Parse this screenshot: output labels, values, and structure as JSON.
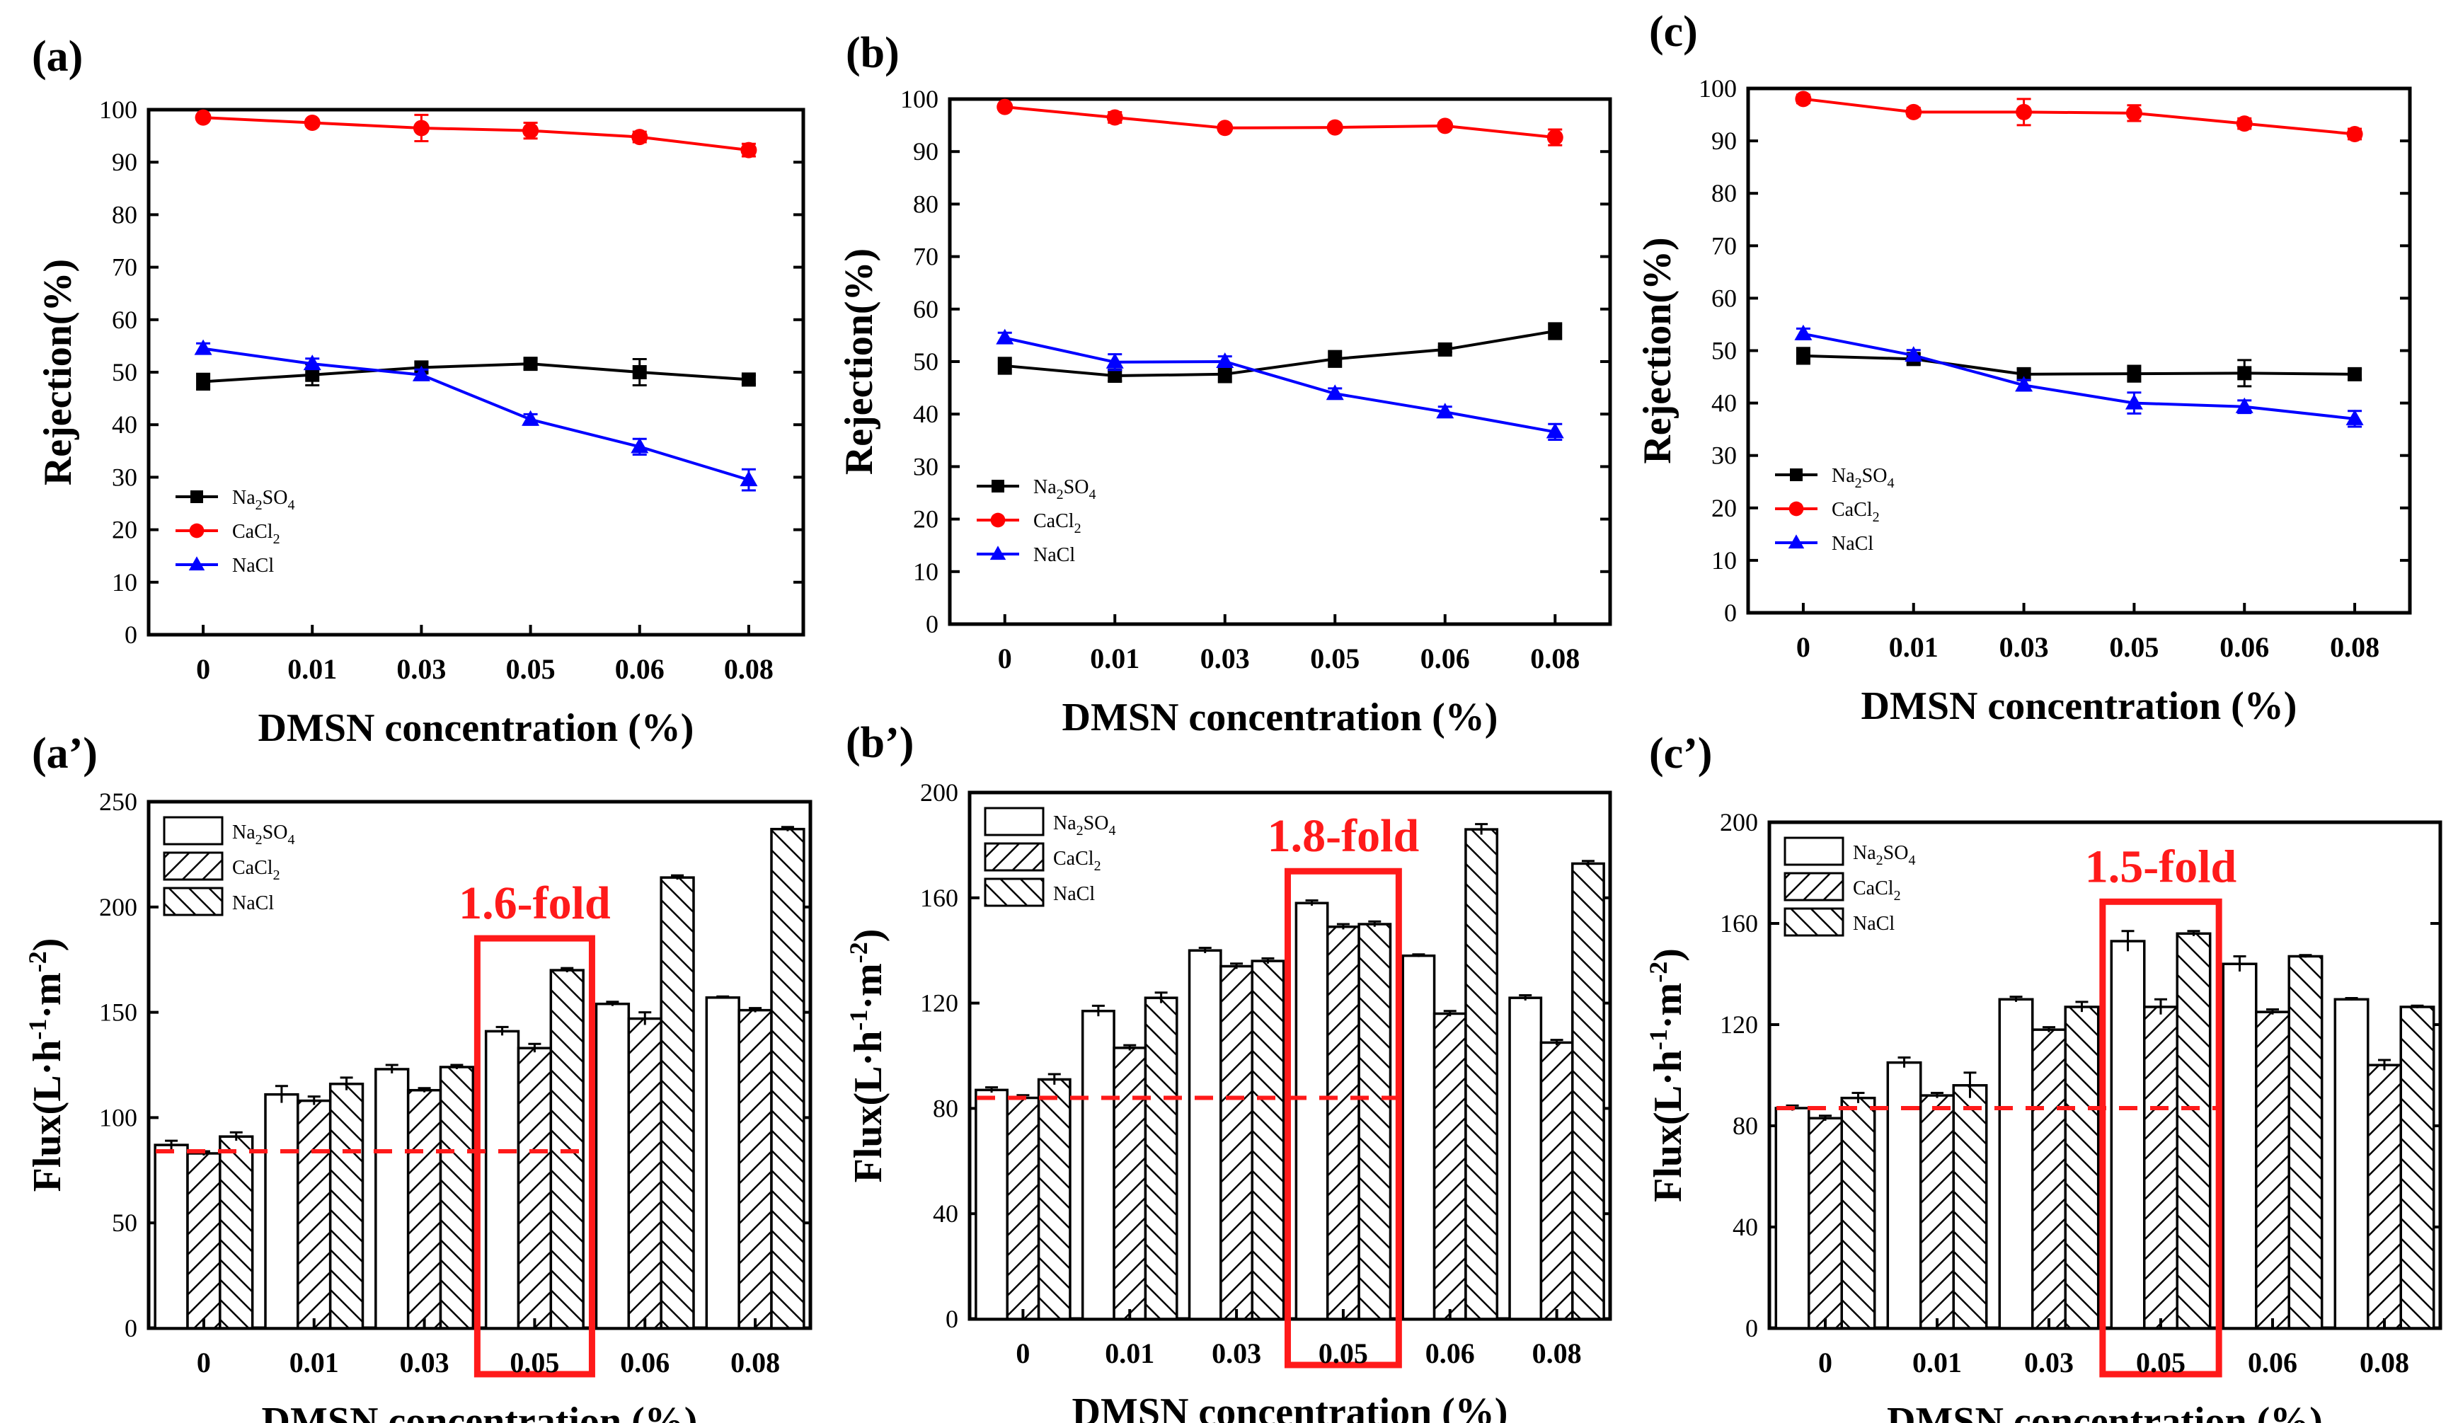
{
  "figure": {
    "xlabel": "DMSN concentration (%)",
    "categories": [
      "0",
      "0.01",
      "0.03",
      "0.05",
      "0.06",
      "0.08"
    ],
    "rejection_ylabel": "Rejection(%)",
    "flux_ylabel": {
      "pre": "Flux(L·h",
      "sup1": "-1",
      "mid": "·m",
      "sup2": "-2",
      "post": ")"
    },
    "legend": [
      {
        "base": "Na",
        "sub1": "2",
        "mid": "SO",
        "sub2": "4",
        "key": "Na2SO4"
      },
      {
        "base": "CaCl",
        "sub1": "2",
        "mid": "",
        "sub2": "",
        "key": "CaCl2"
      },
      {
        "base": "NaCl",
        "sub1": "",
        "mid": "",
        "sub2": "",
        "key": "NaCl"
      }
    ],
    "colors": {
      "Na2SO4": "#000000",
      "CaCl2": "#ff0000",
      "NaCl": "#0000ff",
      "highlight": "#ff1a1a"
    }
  },
  "chart_data": [
    {
      "panel": "(a)",
      "type": "line",
      "ylim": [
        0,
        100
      ],
      "yticks": [
        0,
        10,
        20,
        30,
        40,
        50,
        60,
        70,
        80,
        90,
        100
      ],
      "series": [
        {
          "name": "Na2SO4",
          "values": [
            48.2,
            49.5,
            50.9,
            51.6,
            50.0,
            48.6
          ],
          "errors": [
            1.5,
            2.0,
            1.0,
            1.0,
            2.5,
            0.8
          ]
        },
        {
          "name": "CaCl2",
          "values": [
            98.5,
            97.5,
            96.5,
            96.0,
            94.8,
            92.3
          ],
          "errors": [
            0.5,
            0.6,
            2.5,
            1.5,
            1.0,
            1.2
          ]
        },
        {
          "name": "NaCl",
          "values": [
            54.5,
            51.6,
            49.5,
            41.0,
            35.8,
            29.5
          ],
          "errors": [
            1.0,
            1.0,
            1.0,
            1.0,
            1.5,
            2.0
          ]
        }
      ]
    },
    {
      "panel": "(b)",
      "type": "line",
      "ylim": [
        0,
        100
      ],
      "yticks": [
        0,
        10,
        20,
        30,
        40,
        50,
        60,
        70,
        80,
        90,
        100
      ],
      "series": [
        {
          "name": "Na2SO4",
          "values": [
            49.2,
            47.3,
            47.6,
            50.5,
            52.3,
            55.8
          ],
          "errors": [
            1.5,
            1.0,
            1.5,
            1.5,
            0.5,
            1.5
          ]
        },
        {
          "name": "CaCl2",
          "values": [
            98.5,
            96.5,
            94.5,
            94.6,
            94.9,
            92.7
          ],
          "errors": [
            0.5,
            1.0,
            0.5,
            0.5,
            0.5,
            1.5
          ]
        },
        {
          "name": "NaCl",
          "values": [
            54.5,
            49.9,
            50.0,
            43.9,
            40.4,
            36.6
          ],
          "errors": [
            1.0,
            1.5,
            1.0,
            1.0,
            1.0,
            1.5
          ]
        }
      ]
    },
    {
      "panel": "(c)",
      "type": "line",
      "ylim": [
        0,
        100
      ],
      "yticks": [
        0,
        10,
        20,
        30,
        40,
        50,
        60,
        70,
        80,
        90,
        100
      ],
      "series": [
        {
          "name": "Na2SO4",
          "values": [
            49.0,
            48.4,
            45.5,
            45.6,
            45.7,
            45.5
          ],
          "errors": [
            1.5,
            1.0,
            1.0,
            1.5,
            2.5,
            1.0
          ]
        },
        {
          "name": "CaCl2",
          "values": [
            98.0,
            95.5,
            95.5,
            95.3,
            93.3,
            91.3
          ],
          "errors": [
            0.8,
            0.8,
            2.5,
            1.5,
            1.0,
            1.0
          ]
        },
        {
          "name": "NaCl",
          "values": [
            53.2,
            49.1,
            43.4,
            40.0,
            39.3,
            37.0
          ],
          "errors": [
            1.0,
            1.0,
            1.0,
            2.0,
            1.2,
            1.5
          ]
        }
      ]
    },
    {
      "panel": "(a’)",
      "type": "bar",
      "ylim": [
        0,
        250
      ],
      "yticks": [
        0,
        50,
        100,
        150,
        200,
        250
      ],
      "annotation": {
        "text": "1.6-fold",
        "category": "0.05",
        "baseline": 84
      },
      "series": [
        {
          "name": "Na2SO4",
          "values": [
            87,
            111,
            123,
            141,
            154,
            157
          ],
          "errors": [
            2,
            4,
            2,
            2,
            1,
            0.5
          ]
        },
        {
          "name": "CaCl2",
          "values": [
            83,
            108,
            113,
            133,
            147,
            151
          ],
          "errors": [
            1,
            2,
            1,
            2,
            3,
            1
          ]
        },
        {
          "name": "NaCl",
          "values": [
            91,
            116,
            124,
            170,
            214,
            237
          ],
          "errors": [
            2,
            3,
            1,
            1,
            1,
            1
          ]
        }
      ]
    },
    {
      "panel": "(b’)",
      "type": "bar",
      "ylim": [
        0,
        200
      ],
      "yticks": [
        0,
        40,
        80,
        120,
        160,
        200
      ],
      "annotation": {
        "text": "1.8-fold",
        "category": "0.05",
        "baseline": 84
      },
      "series": [
        {
          "name": "Na2SO4",
          "values": [
            87,
            117,
            140,
            158,
            138,
            122
          ],
          "errors": [
            1,
            2,
            1,
            1,
            0.5,
            1
          ]
        },
        {
          "name": "CaCl2",
          "values": [
            84,
            103,
            134,
            149,
            116,
            105
          ],
          "errors": [
            1,
            1,
            1,
            1,
            1,
            1
          ]
        },
        {
          "name": "NaCl",
          "values": [
            91,
            122,
            136,
            150,
            186,
            173
          ],
          "errors": [
            2,
            2,
            1,
            1,
            2,
            1
          ]
        }
      ]
    },
    {
      "panel": "(c’)",
      "type": "bar",
      "ylim": [
        0,
        200
      ],
      "yticks": [
        0,
        40,
        80,
        120,
        160,
        200
      ],
      "annotation": {
        "text": "1.5-fold",
        "category": "0.05",
        "baseline": 87
      },
      "series": [
        {
          "name": "Na2SO4",
          "values": [
            87,
            105,
            130,
            153,
            144,
            130
          ],
          "errors": [
            1,
            2,
            1,
            4,
            3,
            0.5
          ]
        },
        {
          "name": "CaCl2",
          "values": [
            83,
            92,
            118,
            127,
            125,
            104
          ],
          "errors": [
            1,
            1,
            1,
            3,
            1,
            2
          ]
        },
        {
          "name": "NaCl",
          "values": [
            91,
            96,
            127,
            156,
            147,
            127
          ],
          "errors": [
            2,
            5,
            2,
            1,
            0.5,
            0.5
          ]
        }
      ]
    }
  ]
}
